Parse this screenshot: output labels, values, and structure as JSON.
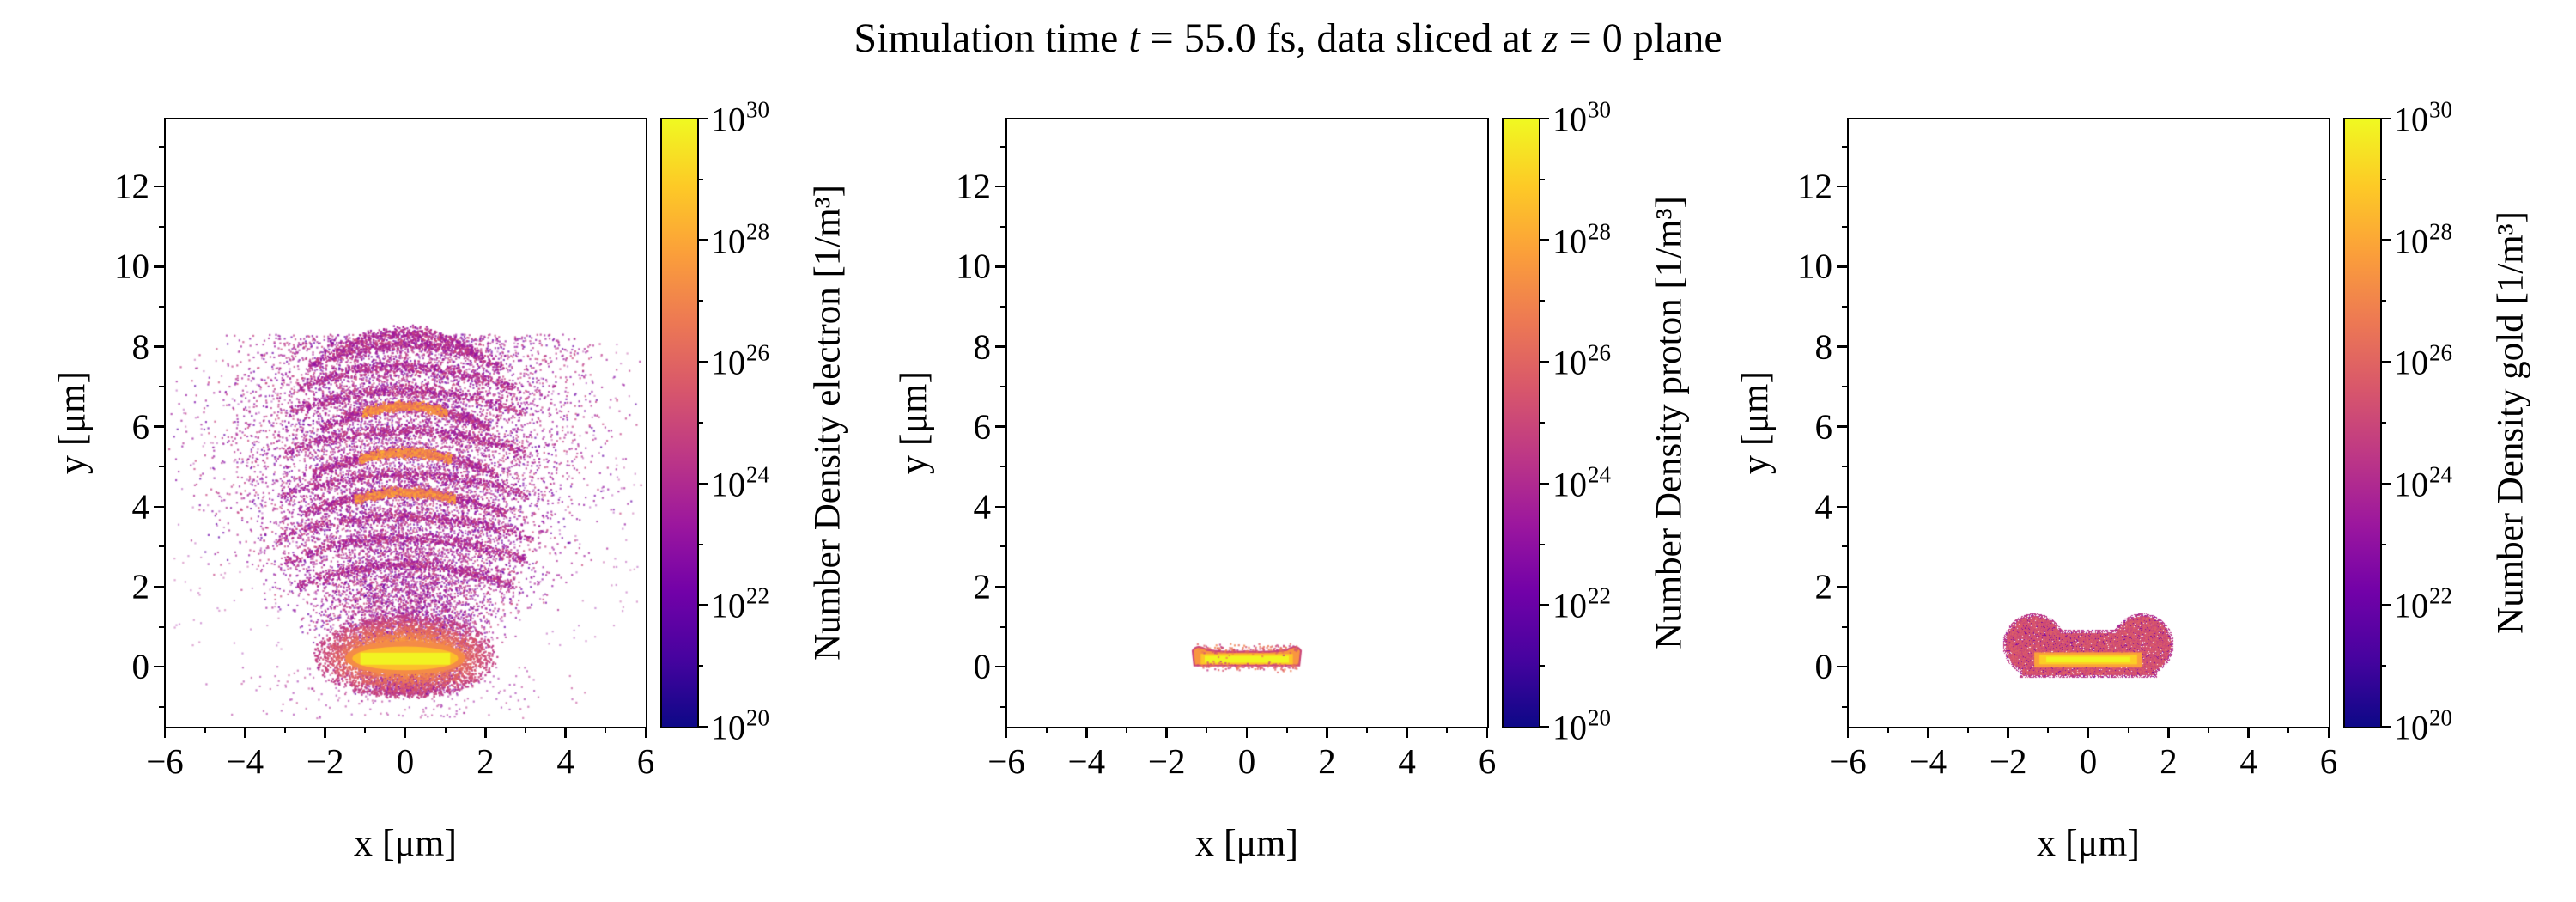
{
  "title": {
    "part1": "Simulation time ",
    "t_var": "t",
    "part2": " = 55.0 fs, data sliced at ",
    "z_var": "z",
    "part3": " = 0 plane"
  },
  "chart_data": {
    "type": "heatmap",
    "suptitle": "Simulation time t = 55.0 fs, data sliced at z = 0 plane",
    "x_range": [
      -6,
      6
    ],
    "y_range": [
      -1.5,
      13.7
    ],
    "x_ticks": [
      -6,
      -4,
      -2,
      0,
      2,
      4,
      6
    ],
    "x_minor_ticks": [
      -5,
      -3,
      -1,
      1,
      3,
      5
    ],
    "x_tick_labels": [
      "−6",
      "−4",
      "−2",
      "0",
      "2",
      "4",
      "6"
    ],
    "y_ticks": [
      0,
      2,
      4,
      6,
      8,
      10,
      12
    ],
    "y_minor_ticks": [
      -1,
      1,
      3,
      5,
      7,
      9,
      11,
      13
    ],
    "y_tick_labels": [
      "0",
      "2",
      "4",
      "6",
      "8",
      "10",
      "12"
    ],
    "grid": false,
    "colorbar": {
      "scale": "log",
      "min_exp": 20,
      "max_exp": 30,
      "tick_exps": [
        20,
        22,
        24,
        26,
        28,
        30
      ],
      "minor_tick_exps": [
        21,
        23,
        25,
        27,
        29
      ],
      "tick_labels": [
        "10^20",
        "10^22",
        "10^24",
        "10^26",
        "10^28",
        "10^30"
      ],
      "colormap": "plasma"
    },
    "panels": [
      {
        "species": "electron",
        "xlabel": "x [μm]",
        "ylabel": "y [μm]",
        "colorbar_label": "Number Density electron [1/m³]",
        "features": {
          "core_bar": {
            "x_extent": [
              -1.5,
              1.5
            ],
            "y_extent": [
              -0.1,
              0.6
            ],
            "peak_density_exp": 30
          },
          "plume": {
            "x_extent": [
              -5.8,
              5.8
            ],
            "y_extent": [
              -1.3,
              8.6
            ],
            "density_exp_range": [
              21,
              25
            ]
          },
          "arcs": [
            {
              "y": 2.55,
              "halfwidth": 2.7,
              "core": false
            },
            {
              "y": 3.2,
              "halfwidth": 3.0,
              "core": false
            },
            {
              "y": 3.75,
              "halfwidth": 3.2,
              "core": false
            },
            {
              "y": 4.35,
              "halfwidth": 2.5,
              "core": true
            },
            {
              "y": 4.8,
              "halfwidth": 3.1,
              "core": false
            },
            {
              "y": 5.35,
              "halfwidth": 2.3,
              "core": true
            },
            {
              "y": 5.9,
              "halfwidth": 3.0,
              "core": false
            },
            {
              "y": 6.5,
              "halfwidth": 2.1,
              "core": true
            },
            {
              "y": 6.9,
              "halfwidth": 2.9,
              "core": false
            },
            {
              "y": 7.5,
              "halfwidth": 2.7,
              "core": false
            },
            {
              "y": 8.05,
              "halfwidth": 2.4,
              "core": false
            },
            {
              "y": 8.35,
              "halfwidth": 1.8,
              "core": false
            }
          ]
        }
      },
      {
        "species": "proton",
        "xlabel": "x [μm]",
        "ylabel": "y [μm]",
        "colorbar_label": "Number Density proton [1/m³]",
        "features": {
          "bar": {
            "x_extent": [
              -1.25,
              1.25
            ],
            "y_extent": [
              0,
              0.55
            ],
            "peak_density_exp": 30
          }
        }
      },
      {
        "species": "gold",
        "xlabel": "x [μm]",
        "ylabel": "y [μm]",
        "colorbar_label": "Number Density gold [1/m³]",
        "features": {
          "blob": {
            "x_extent": [
              -2.15,
              2.15
            ],
            "y_extent": [
              -0.3,
              1.35
            ],
            "lobe_centers": [
              -1.35,
              1.35
            ],
            "lobe_y": 0.55,
            "lobe_radius": 0.78,
            "density_exp": 24
          },
          "core_bar": {
            "x_extent": [
              -1.35,
              1.35
            ],
            "y_extent": [
              0,
              0.36
            ],
            "peak_density_exp": 29
          }
        }
      }
    ]
  }
}
